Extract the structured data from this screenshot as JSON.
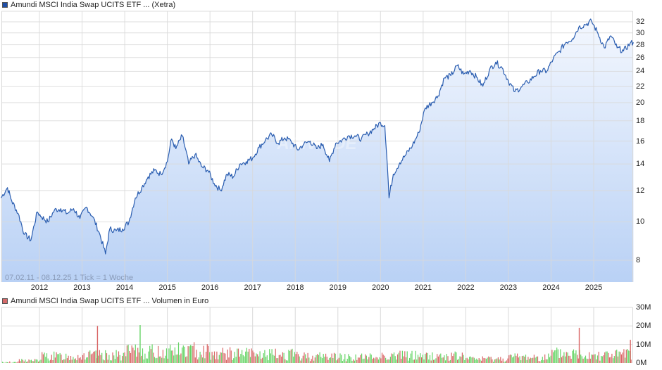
{
  "price_chart": {
    "legend": {
      "label": "Amundi MSCI India Swap UCITS ETF ... (Xetra)",
      "color": "#1f4fa8"
    },
    "info_text": "07.02.11 - 08.12.25   1 Tick = 1 Woche",
    "watermark": "ARIVA.DE",
    "line_color": "#2a5db0",
    "fill_top": "#f3f7fe",
    "fill_bottom": "#b9d1f5"
  },
  "volume_chart": {
    "legend": {
      "label": "Amundi MSCI India Swap UCITS ETF ... Volumen in Euro",
      "color": "#d66a6a"
    },
    "up_color": "#66d466",
    "down_color": "#d96666"
  },
  "chart_data": [
    {
      "type": "area",
      "title": "Amundi MSCI India Swap UCITS ETF ... (Xetra)",
      "xlabel": "",
      "ylabel": "",
      "y_scale": "log",
      "ylim": [
        7,
        34
      ],
      "grid": true,
      "legend_position": "top-left",
      "date_range": "07.02.11 - 08.12.25",
      "tick_interval": "1 Tick = 1 Woche",
      "x_ticks": [
        "2012",
        "2013",
        "2014",
        "2015",
        "2016",
        "2017",
        "2018",
        "2019",
        "2020",
        "2021",
        "2022",
        "2023",
        "2024",
        "2025"
      ],
      "y_ticks": [
        8,
        10,
        12,
        14,
        16,
        18,
        20,
        22,
        24,
        26,
        28,
        30,
        32
      ],
      "x": [
        2011.1,
        2011.25,
        2011.35,
        2011.5,
        2011.65,
        2011.8,
        2011.95,
        2012.05,
        2012.2,
        2012.35,
        2012.5,
        2012.65,
        2012.8,
        2012.95,
        2013.1,
        2013.25,
        2013.4,
        2013.55,
        2013.65,
        2013.8,
        2013.95,
        2014.1,
        2014.25,
        2014.4,
        2014.55,
        2014.7,
        2014.85,
        2015.0,
        2015.1,
        2015.2,
        2015.35,
        2015.5,
        2015.65,
        2015.8,
        2015.95,
        2016.1,
        2016.25,
        2016.4,
        2016.55,
        2016.7,
        2016.85,
        2017.0,
        2017.15,
        2017.3,
        2017.45,
        2017.6,
        2017.75,
        2017.9,
        2018.05,
        2018.2,
        2018.35,
        2018.5,
        2018.65,
        2018.8,
        2018.95,
        2019.1,
        2019.25,
        2019.4,
        2019.55,
        2019.7,
        2019.85,
        2020.0,
        2020.1,
        2020.2,
        2020.3,
        2020.45,
        2020.6,
        2020.75,
        2020.9,
        2021.05,
        2021.2,
        2021.35,
        2021.5,
        2021.65,
        2021.8,
        2021.95,
        2022.1,
        2022.25,
        2022.4,
        2022.55,
        2022.7,
        2022.85,
        2023.0,
        2023.15,
        2023.3,
        2023.45,
        2023.6,
        2023.75,
        2023.9,
        2024.05,
        2024.2,
        2024.35,
        2024.5,
        2024.65,
        2024.8,
        2024.95,
        2025.1,
        2025.25,
        2025.4,
        2025.55,
        2025.7,
        2025.85,
        2025.93
      ],
      "values": [
        11.5,
        12.2,
        11.3,
        10.5,
        9.3,
        9.0,
        10.6,
        10.3,
        10.0,
        10.7,
        10.8,
        10.5,
        10.8,
        10.2,
        10.9,
        10.3,
        9.4,
        8.3,
        9.6,
        9.5,
        9.6,
        10.0,
        11.5,
        12.2,
        13.0,
        13.5,
        13.2,
        14.2,
        16.2,
        15.3,
        16.5,
        14.0,
        14.8,
        13.8,
        13.5,
        12.5,
        12.0,
        13.2,
        13.0,
        14.0,
        14.2,
        14.5,
        15.4,
        16.1,
        16.6,
        15.8,
        16.3,
        16.0,
        15.2,
        15.7,
        16.0,
        15.3,
        15.7,
        14.2,
        15.8,
        16.1,
        16.5,
        16.5,
        16.2,
        16.7,
        17.2,
        17.8,
        17.5,
        11.5,
        13.2,
        14.1,
        14.8,
        15.6,
        16.8,
        19.4,
        20.0,
        20.8,
        23.1,
        23.4,
        24.8,
        23.6,
        24.1,
        23.2,
        22.0,
        24.1,
        25.3,
        24.5,
        22.7,
        21.3,
        21.9,
        22.5,
        23.3,
        24.1,
        24.0,
        25.8,
        27.0,
        28.4,
        29.0,
        31.0,
        31.5,
        32.1,
        29.9,
        27.5,
        29.5,
        27.5,
        27.0,
        28.2,
        28.4
      ]
    },
    {
      "type": "bar",
      "title": "Amundi MSCI India Swap UCITS ETF ... Volumen in Euro",
      "xlabel": "",
      "ylabel": "Volumen in Euro",
      "ylim": [
        0,
        30000000
      ],
      "grid": true,
      "y_ticks": [
        "0M",
        "10M",
        "20M",
        "30M"
      ],
      "legend_position": "top-left",
      "x_ticks": [
        "2012",
        "2013",
        "2014",
        "2015",
        "2016",
        "2017",
        "2018",
        "2019",
        "2020",
        "2021",
        "2022",
        "2023",
        "2024",
        "2025"
      ],
      "series": [
        {
          "name": "up (green)",
          "color": "#66d466"
        },
        {
          "name": "down (red)",
          "color": "#d96666"
        }
      ],
      "yearly_typical_volume_M": {
        "2011": 1.5,
        "2012": 4.0,
        "2013": 4.5,
        "2014": 6.5,
        "2015": 7.5,
        "2016": 5.5,
        "2017": 5.0,
        "2018": 4.0,
        "2019": 3.5,
        "2020": 4.5,
        "2021": 4.0,
        "2022": 2.5,
        "2023": 3.5,
        "2024": 5.5,
        "2025": 5.0
      },
      "notable_peaks_M": [
        {
          "x": 2013.35,
          "value": 20.0,
          "color": "down"
        },
        {
          "x": 2014.35,
          "value": 20.5,
          "color": "up"
        },
        {
          "x": 2024.65,
          "value": 19.0,
          "color": "down"
        },
        {
          "x": 2025.85,
          "value": 12.5,
          "color": "down"
        }
      ]
    }
  ],
  "axes": {
    "price_y_labels": [
      "32",
      "30",
      "28",
      "26",
      "24",
      "22",
      "20",
      "18",
      "16",
      "14",
      "12",
      "10",
      "8"
    ],
    "x_labels": [
      "2012",
      "2013",
      "2014",
      "2015",
      "2016",
      "2017",
      "2018",
      "2019",
      "2020",
      "2021",
      "2022",
      "2023",
      "2024",
      "2025"
    ],
    "volume_y_labels": [
      "30M",
      "20M",
      "10M",
      "0M"
    ]
  }
}
